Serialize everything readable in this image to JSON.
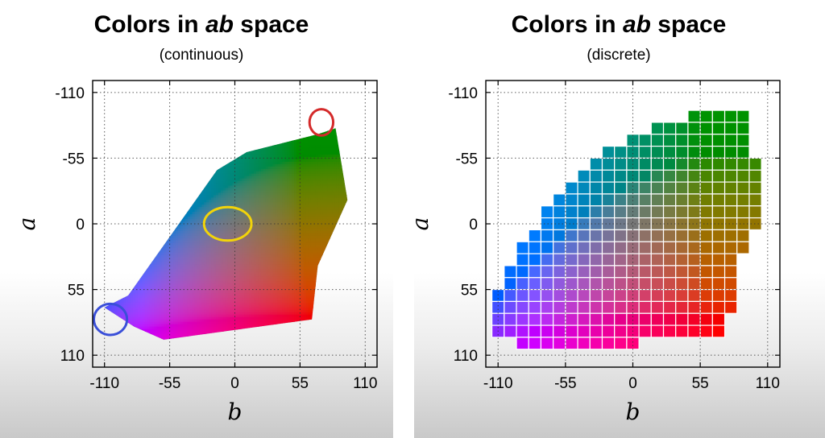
{
  "chart_data": [
    {
      "type": "area",
      "title_pre": "Colors in ",
      "title_em": "ab",
      "title_post": " space",
      "subtitle": "(continuous)",
      "xlabel": "b",
      "ylabel": "a",
      "xlim": [
        -120,
        120
      ],
      "ylim": [
        -120,
        120
      ],
      "xticks": [
        -110,
        -55,
        0,
        55,
        110
      ],
      "yticks": [
        -110,
        -55,
        0,
        55,
        110
      ],
      "y_inverted": true,
      "grid": true,
      "gamut_polygon": [
        [
          -110,
          70
        ],
        [
          -90,
          60
        ],
        [
          -15,
          -45
        ],
        [
          10,
          -60
        ],
        [
          70,
          -75
        ],
        [
          85,
          -80
        ],
        [
          95,
          -20
        ],
        [
          70,
          35
        ],
        [
          65,
          80
        ],
        [
          -60,
          97
        ],
        [
          -85,
          86
        ]
      ],
      "annotations": [
        {
          "shape": "circle",
          "color": "#d42a2a",
          "cx": 73,
          "cy": -85,
          "rx": 10,
          "ry": 11
        },
        {
          "shape": "circle",
          "color": "#f2d40a",
          "cx": -6,
          "cy": 0,
          "rx": 20,
          "ry": 14
        },
        {
          "shape": "circle",
          "color": "#3a4fd8",
          "cx": -105,
          "cy": 80,
          "rx": 14,
          "ry": 13
        }
      ]
    },
    {
      "type": "heatmap",
      "title_pre": "Colors in ",
      "title_em": "ab",
      "title_post": " space",
      "subtitle": "(discrete)",
      "xlabel": "b",
      "ylabel": "a",
      "xlim": [
        -120,
        120
      ],
      "ylim": [
        -120,
        120
      ],
      "xticks": [
        -110,
        -55,
        0,
        55,
        110
      ],
      "yticks": [
        -110,
        -55,
        0,
        55,
        110
      ],
      "y_inverted": true,
      "grid": true,
      "bin_size": 10,
      "rows": [
        {
          "a": -90,
          "b_min": 50,
          "b_max": 90
        },
        {
          "a": -80,
          "b_min": 20,
          "b_max": 90
        },
        {
          "a": -70,
          "b_min": 0,
          "b_max": 90
        },
        {
          "a": -60,
          "b_min": -20,
          "b_max": 90
        },
        {
          "a": -50,
          "b_min": -30,
          "b_max": 100
        },
        {
          "a": -40,
          "b_min": -40,
          "b_max": 100
        },
        {
          "a": -30,
          "b_min": -50,
          "b_max": 100
        },
        {
          "a": -20,
          "b_min": -60,
          "b_max": 100
        },
        {
          "a": -10,
          "b_min": -70,
          "b_max": 100
        },
        {
          "a": 0,
          "b_min": -70,
          "b_max": 100
        },
        {
          "a": 10,
          "b_min": -80,
          "b_max": 90
        },
        {
          "a": 20,
          "b_min": -90,
          "b_max": 90
        },
        {
          "a": 30,
          "b_min": -90,
          "b_max": 80
        },
        {
          "a": 40,
          "b_min": -100,
          "b_max": 80
        },
        {
          "a": 50,
          "b_min": -100,
          "b_max": 80
        },
        {
          "a": 60,
          "b_min": -110,
          "b_max": 80
        },
        {
          "a": 70,
          "b_min": -110,
          "b_max": 80
        },
        {
          "a": 80,
          "b_min": -110,
          "b_max": 70
        },
        {
          "a": 90,
          "b_min": -110,
          "b_max": 70
        },
        {
          "a": 100,
          "b_min": -90,
          "b_max": 0
        }
      ]
    }
  ]
}
